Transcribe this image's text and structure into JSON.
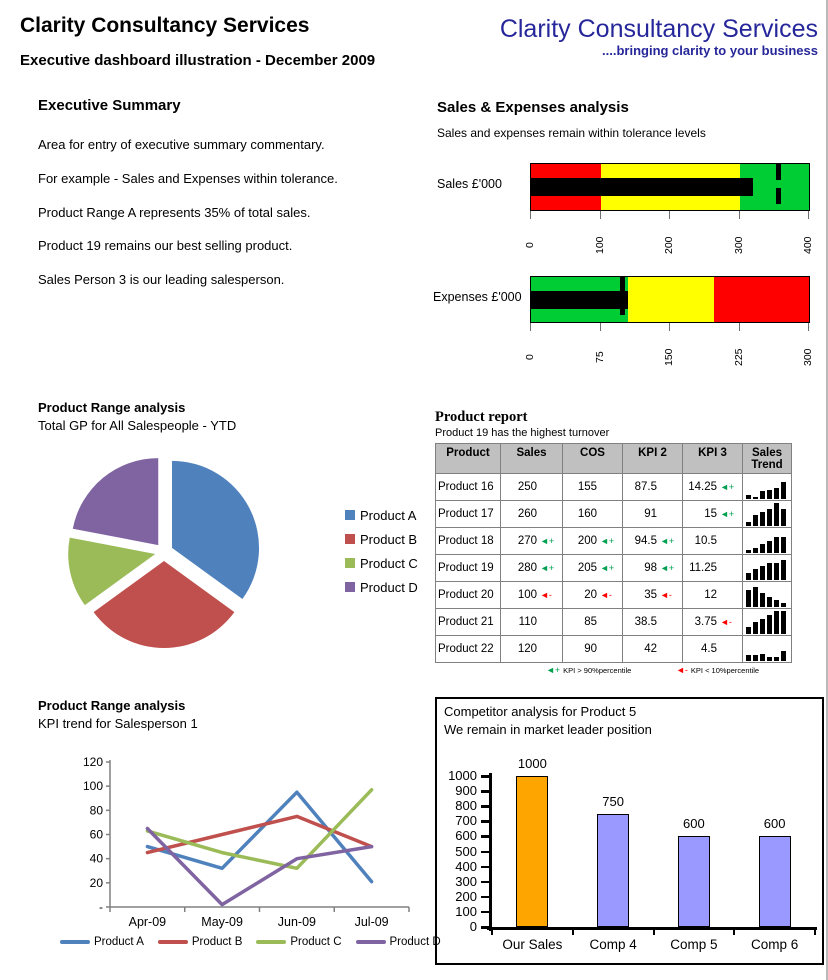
{
  "header": {
    "title": "Clarity Consultancy Services",
    "subtitle": "Executive dashboard illustration - December 2009"
  },
  "logo": {
    "name": "Clarity Consultancy Services",
    "tagline": "....bringing clarity to your business",
    "color": "#26269B"
  },
  "executive_summary": {
    "heading": "Executive Summary",
    "paragraphs": [
      "Area for entry of executive summary commentary.",
      "For example - Sales and Expenses within tolerance.",
      "Product Range A represents 35% of total sales.",
      "Product 19 remains our best selling product.",
      "Sales Person 3 is our leading salesperson."
    ]
  },
  "sales_expenses": {
    "heading": "Sales & Expenses analysis",
    "subtitle": "Sales and expenses remain within tolerance levels"
  },
  "chart_data": [
    {
      "type": "bullet",
      "id": "sales-bullet",
      "label": "Sales £'000",
      "max": 400,
      "ticks": [
        "0",
        "100",
        "200",
        "300",
        "400"
      ],
      "bands": [
        {
          "to": 100,
          "color": "#FF0000"
        },
        {
          "to": 300,
          "color": "#FFFF00"
        },
        {
          "to": 400,
          "color": "#00CC33"
        }
      ],
      "measure": 320,
      "target": 355,
      "measure_color": "#000000",
      "target_color": "#000000"
    },
    {
      "type": "bullet",
      "id": "expenses-bullet",
      "label": "Expenses £'000",
      "max": 300,
      "ticks": [
        "0",
        "75",
        "150",
        "225",
        "300"
      ],
      "bands": [
        {
          "to": 105,
          "color": "#00CC33"
        },
        {
          "to": 197,
          "color": "#FFFF00"
        },
        {
          "to": 300,
          "color": "#FF0000"
        }
      ],
      "measure": 105,
      "target": 98,
      "measure_color": "#000000",
      "target_color": "#000000"
    },
    {
      "type": "pie",
      "id": "product-pie",
      "title": "Product Range analysis",
      "subtitle": "Total GP for All Salespeople - YTD",
      "labels": [
        "Product A",
        "Product B",
        "Product C",
        "Product D"
      ],
      "values": [
        35,
        30,
        13,
        22
      ],
      "colors": [
        "#4F81BD",
        "#C0504D",
        "#9BBB59",
        "#8064A2"
      ]
    },
    {
      "type": "table",
      "id": "product-report",
      "title": "Product report",
      "subtitle": "Product 19 has the highest turnover",
      "columns": [
        "Product",
        "Sales",
        "COS",
        "KPI 2",
        "KPI 3",
        "Sales Trend"
      ],
      "rows": [
        {
          "product": "Product 16",
          "sales": "250",
          "sales_flag": "",
          "cos": "155",
          "cos_flag": "",
          "kpi2": "87.5",
          "kpi2_flag": "",
          "kpi3": "14.25",
          "kpi3_flag": "up",
          "trend": [
            15,
            10,
            35,
            38,
            45,
            70
          ]
        },
        {
          "product": "Product 17",
          "sales": "260",
          "sales_flag": "",
          "cos": "160",
          "cos_flag": "",
          "kpi2": "91",
          "kpi2_flag": "",
          "kpi3": "15",
          "kpi3_flag": "up",
          "trend": [
            18,
            45,
            60,
            72,
            95,
            72
          ]
        },
        {
          "product": "Product 18",
          "sales": "270",
          "sales_flag": "up",
          "cos": "200",
          "cos_flag": "up",
          "kpi2": "94.5",
          "kpi2_flag": "up",
          "kpi3": "10.5",
          "kpi3_flag": "",
          "trend": [
            12,
            22,
            38,
            52,
            65,
            65
          ]
        },
        {
          "product": "Product 19",
          "sales": "280",
          "sales_flag": "up",
          "cos": "205",
          "cos_flag": "up",
          "kpi2": "98",
          "kpi2_flag": "up",
          "kpi3": "11.25",
          "kpi3_flag": "",
          "trend": [
            30,
            45,
            58,
            72,
            72,
            85
          ]
        },
        {
          "product": "Product 20",
          "sales": "100",
          "sales_flag": "down",
          "cos": "20",
          "cos_flag": "down",
          "kpi2": "35",
          "kpi2_flag": "down",
          "kpi3": "12",
          "kpi3_flag": "",
          "trend": [
            72,
            85,
            58,
            42,
            30,
            15
          ]
        },
        {
          "product": "Product 21",
          "sales": "110",
          "sales_flag": "",
          "cos": "85",
          "cos_flag": "",
          "kpi2": "38.5",
          "kpi2_flag": "",
          "kpi3": "3.75",
          "kpi3_flag": "down",
          "trend": [
            30,
            48,
            62,
            78,
            95,
            95
          ]
        },
        {
          "product": "Product 22",
          "sales": "120",
          "sales_flag": "",
          "cos": "90",
          "cos_flag": "",
          "kpi2": "42",
          "kpi2_flag": "",
          "kpi3": "4.5",
          "kpi3_flag": "",
          "trend": [
            25,
            25,
            28,
            15,
            15,
            40
          ]
        }
      ],
      "flag_up_symbol": "◄+",
      "flag_down_symbol": "◄-",
      "flag_up_color": "#00A050",
      "flag_down_color": "#FF0000",
      "legend_high": "KPI > 90%percentile",
      "legend_low": "KPI < 10%percentile"
    },
    {
      "type": "line",
      "id": "kpi-line",
      "title": "Product Range analysis",
      "subtitle": "KPI trend for Salesperson 1",
      "x": [
        "Apr-09",
        "May-09",
        "Jun-09",
        "Jul-09"
      ],
      "ylim": [
        0,
        120
      ],
      "ytick_values": [
        0,
        20,
        40,
        60,
        80,
        100,
        120
      ],
      "ytick_labels": [
        "-",
        "20",
        "40",
        "60",
        "80",
        "100",
        "120"
      ],
      "series": [
        {
          "name": "Product A",
          "color": "#4F81BD",
          "values": [
            50,
            32,
            95,
            21
          ]
        },
        {
          "name": "Product B",
          "color": "#C0504D",
          "values": [
            45,
            60,
            75,
            50
          ]
        },
        {
          "name": "Product C",
          "color": "#9BBB59",
          "values": [
            63,
            45,
            32,
            97
          ]
        },
        {
          "name": "Product D",
          "color": "#8064A2",
          "values": [
            65,
            2,
            40,
            50
          ]
        }
      ]
    },
    {
      "type": "bar",
      "id": "competitor-bar",
      "title": "Competitor analysis for Product 5",
      "subtitle": "We remain in market leader position",
      "categories": [
        "Our Sales",
        "Comp 4",
        "Comp 5",
        "Comp 6"
      ],
      "values": [
        1000,
        750,
        600,
        600
      ],
      "data_labels": [
        "1000",
        "750",
        "600",
        "600"
      ],
      "colors": [
        "#FFA500",
        "#9999FF",
        "#9999FF",
        "#9999FF"
      ],
      "ylim": [
        0,
        1000
      ],
      "ytick_step": 100
    }
  ]
}
